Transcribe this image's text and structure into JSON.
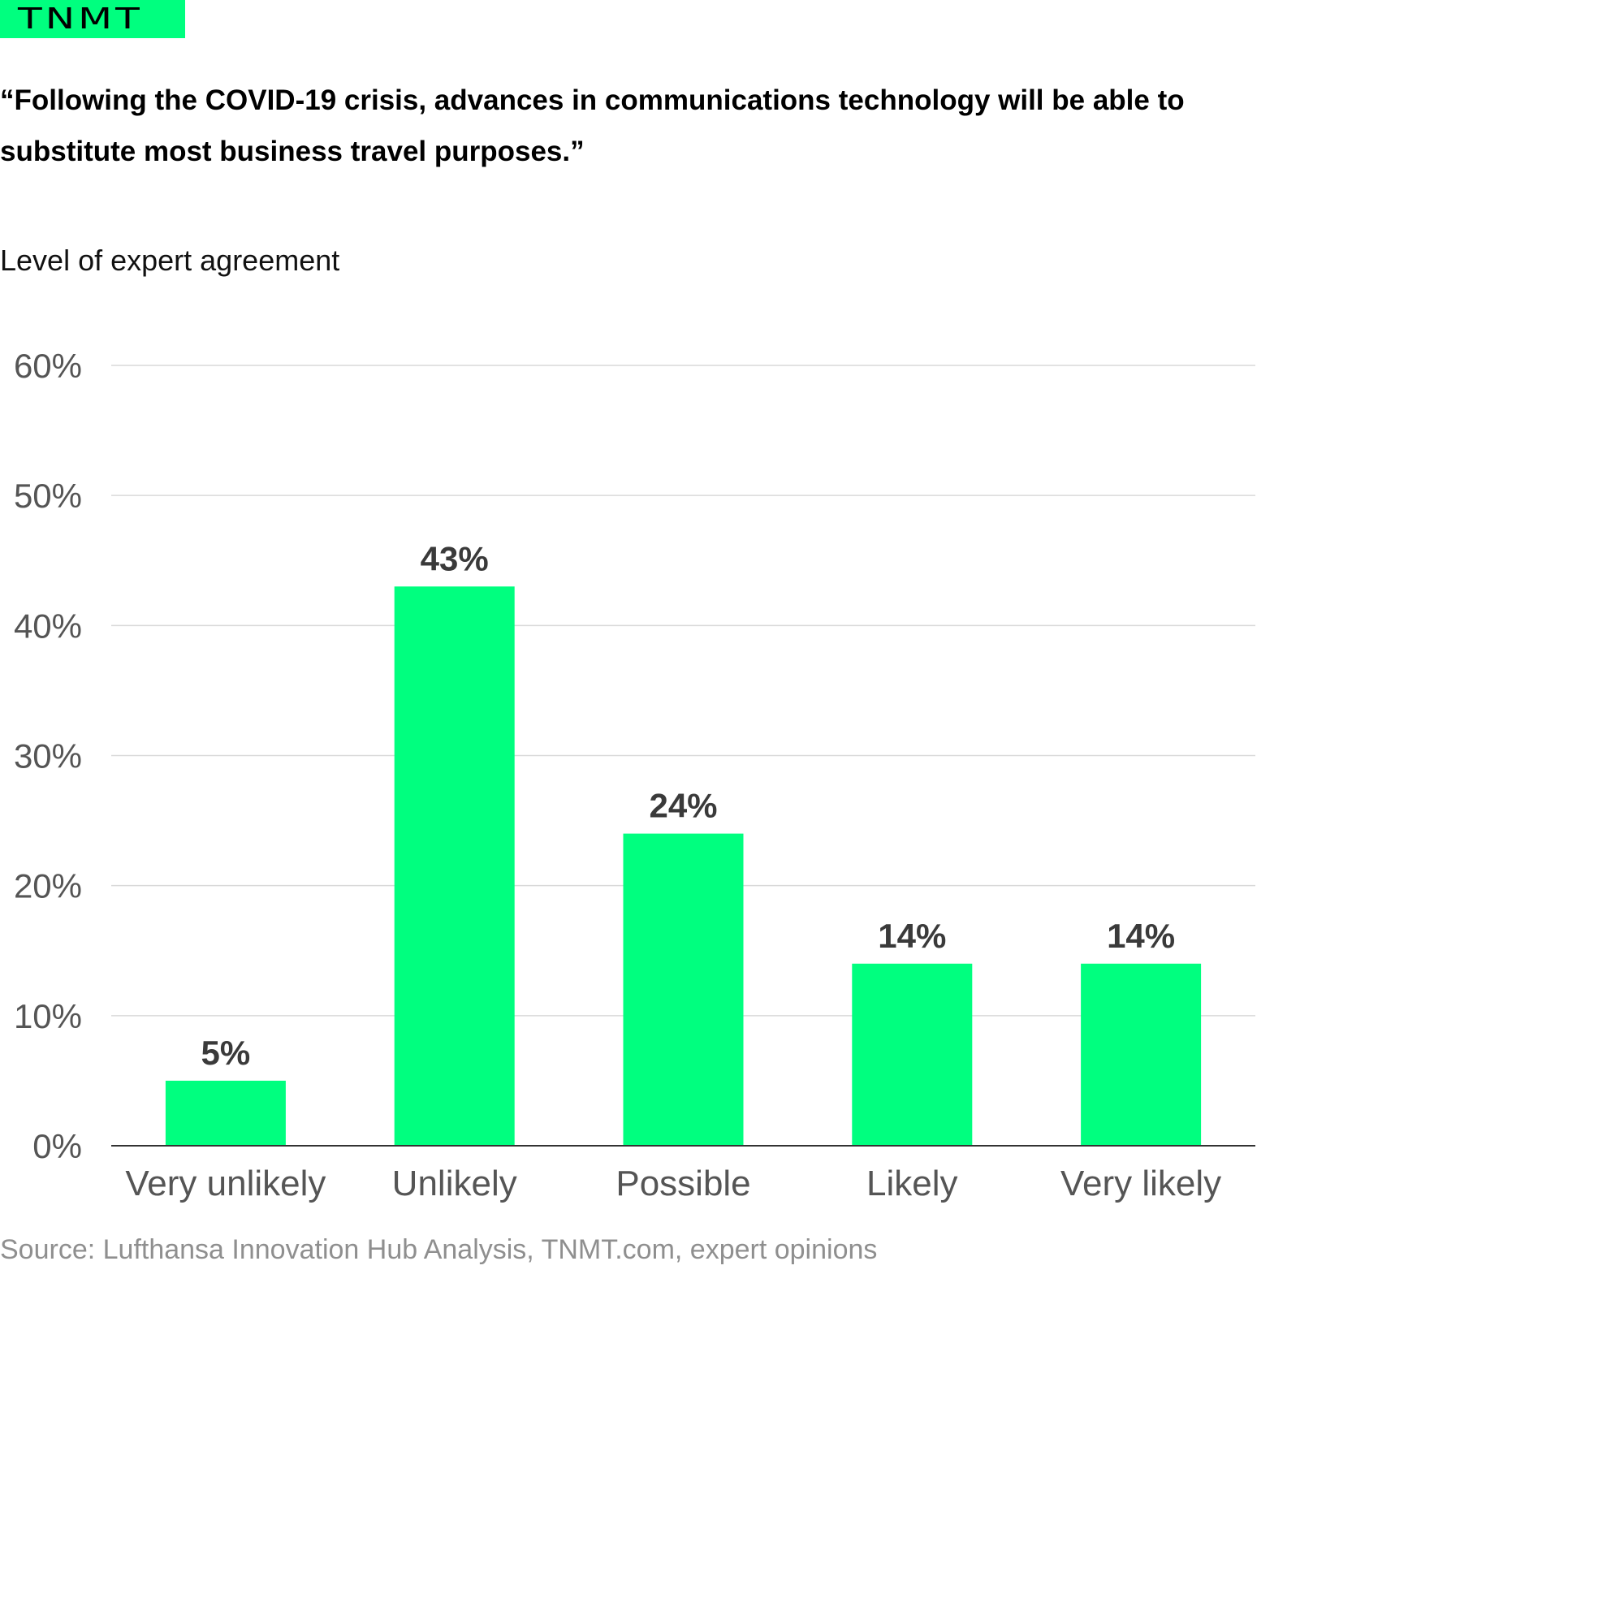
{
  "logo": {
    "text": "TNMT"
  },
  "header": {
    "title": "“Following the COVID-19 crisis, advances in communications technology will be able to substitute most business travel purposes.”",
    "subtitle": "Level of expert agreement"
  },
  "footer": {
    "source": "Source: Lufthansa Innovation Hub Analysis, TNMT.com, expert opinions"
  },
  "colors": {
    "bar": "#00ff7f",
    "logo_bg": "#00ff7f",
    "grid": "#d9d9d9",
    "axis": "#333333"
  },
  "chart_data": {
    "type": "bar",
    "title": "“Following the COVID-19 crisis, advances in communications technology will be able to substitute most business travel purposes.”",
    "ylabel": "Level of expert agreement",
    "xlabel": "",
    "categories": [
      "Very unlikely",
      "Unlikely",
      "Possible",
      "Likely",
      "Very likely"
    ],
    "values": [
      5,
      43,
      24,
      14,
      14
    ],
    "data_labels": [
      "5%",
      "43%",
      "24%",
      "14%",
      "14%"
    ],
    "ylim": [
      0,
      60
    ],
    "yticks": [
      0,
      10,
      20,
      30,
      40,
      50,
      60
    ],
    "ytick_labels": [
      "0%",
      "10%",
      "20%",
      "30%",
      "40%",
      "50%",
      "60%"
    ],
    "grid": true,
    "legend": "none"
  }
}
